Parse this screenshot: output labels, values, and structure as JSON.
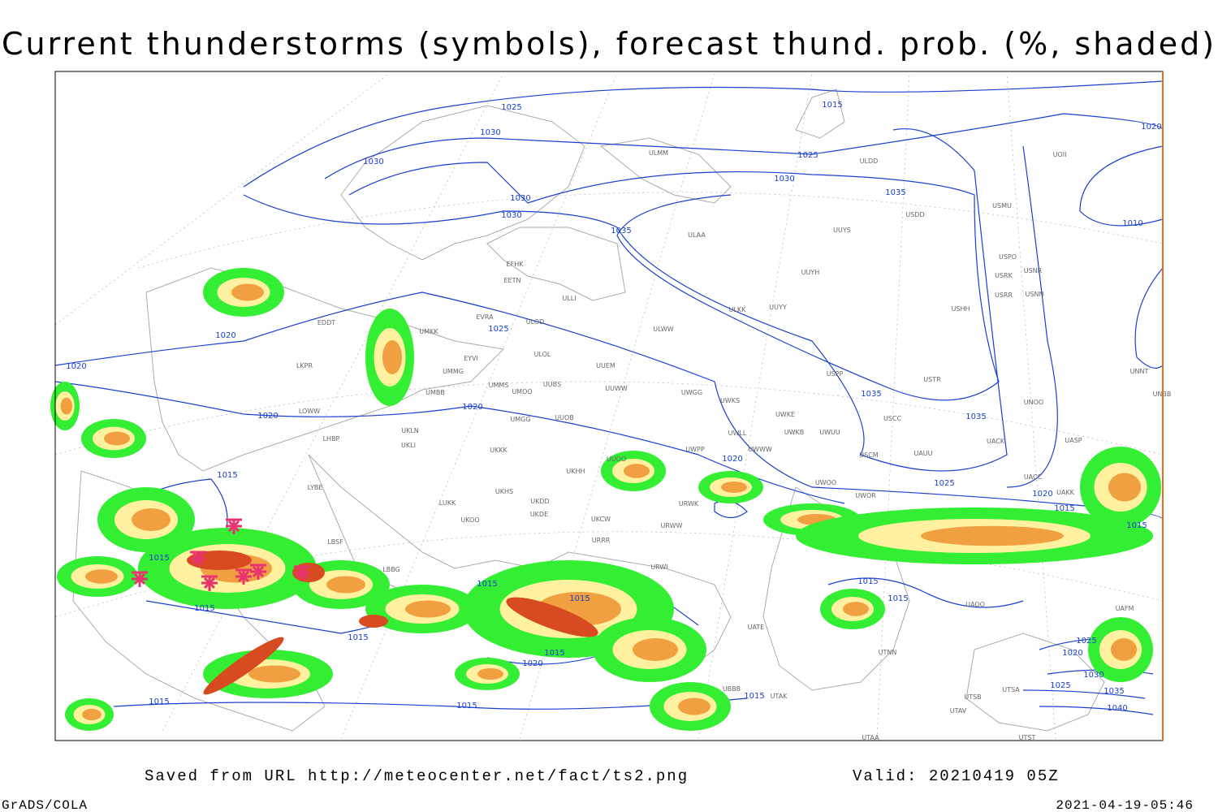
{
  "title": "Current thunderstorms (symbols), forecast thund. prob. (%, shaded)",
  "footer": {
    "source": "Saved from URL http://meteocenter.net/fact/ts2.png",
    "valid": "Valid: 20210419 05Z",
    "software": "GrADS/COLA",
    "timestamp": "2021-04-19-05:46"
  },
  "isobar_labels": [
    "1025",
    "1015",
    "1030",
    "1025",
    "1020",
    "1030",
    "1030",
    "1030",
    "1035",
    "1030",
    "1010",
    "1035",
    "1025",
    "1020",
    "1020",
    "1035",
    "1020",
    "1020",
    "1035",
    "1020",
    "1015",
    "1025",
    "1020",
    "1015",
    "1015",
    "1015",
    "1015",
    "1015",
    "1015",
    "1015",
    "1015",
    "1015",
    "1015",
    "1020",
    "1025",
    "1020",
    "1030",
    "1025",
    "1035",
    "1040",
    "1015",
    "1015",
    "1015"
  ],
  "stations": [
    "ULMM",
    "ULDD",
    "UOII",
    "USMU",
    "USDD",
    "ULAA",
    "UUYS",
    "USPO",
    "UUYH",
    "USNR",
    "USRK",
    "USRR",
    "USNN",
    "EFHK",
    "EETN",
    "ULLI",
    "UUYY",
    "ULKK",
    "USHH",
    "EVRA",
    "EDDT",
    "ULOD",
    "UMKK",
    "ULWW",
    "ULOL",
    "EYVI",
    "UUEM",
    "LKPR",
    "UMMG",
    "USPP",
    "USTR",
    "UMMS",
    "UUBS",
    "UUWW",
    "UMOO",
    "UMBB",
    "UWGG",
    "UWKS",
    "UNOO",
    "UNBB",
    "UNNT",
    "LOWW",
    "UWKE",
    "USCC",
    "UMGG",
    "UUOB",
    "UWKB",
    "UWUU",
    "UWLL",
    "UKLN",
    "UACK",
    "UASP",
    "LHBP",
    "UKLI",
    "UWPP",
    "UWWW",
    "UKKK",
    "USCM",
    "UAUU",
    "UKHH",
    "UUOO",
    "UACC",
    "LYBE",
    "UKHS",
    "UWOO",
    "UWOR",
    "UAKK",
    "UKDD",
    "LUKK",
    "URWK",
    "UKDE",
    "UKOO",
    "UKCW",
    "URWW",
    "URRR",
    "LBSF",
    "LBBG",
    "URWI",
    "UAOO",
    "UAFM",
    "UTNN",
    "UATE",
    "UBBB",
    "UTAK",
    "UTSB",
    "UTSA",
    "UTAV",
    "UTAA",
    "UTST"
  ]
}
